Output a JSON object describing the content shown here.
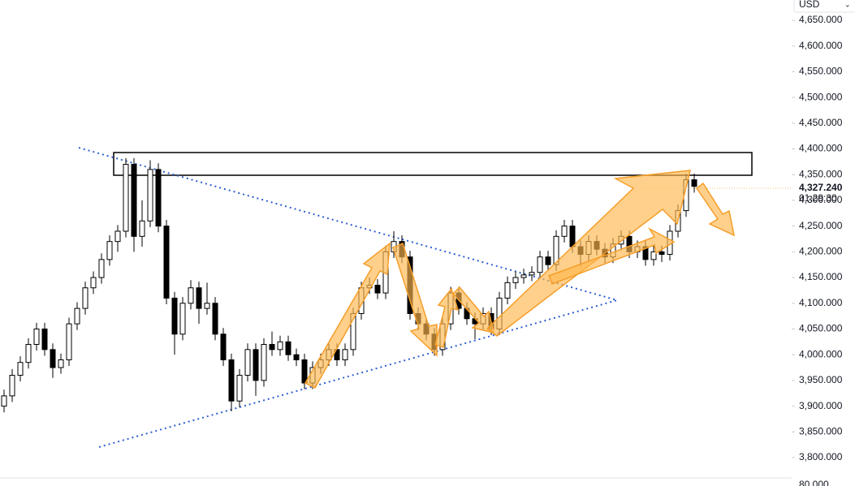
{
  "chart_data": {
    "type": "candlestick",
    "currency": "USD",
    "last_price_label": "4,327.240",
    "countdown": "01:29:30",
    "volume_label": "80,000",
    "up_color": "#ffffff",
    "down_color": "#000000",
    "wick_color": "#000000",
    "ylim": [
      3759,
      4689.4
    ],
    "yticks": [
      {
        "value": 3800,
        "label": "3,800.000"
      },
      {
        "value": 3850,
        "label": "3,850.000"
      },
      {
        "value": 3900,
        "label": "3,900.000"
      },
      {
        "value": 3950,
        "label": "3,950.000"
      },
      {
        "value": 4000,
        "label": "4,000.000"
      },
      {
        "value": 4050,
        "label": "4,050.000"
      },
      {
        "value": 4100,
        "label": "4,100.000"
      },
      {
        "value": 4150,
        "label": "4,150.000"
      },
      {
        "value": 4200,
        "label": "4,200.000"
      },
      {
        "value": 4250,
        "label": "4,250.000"
      },
      {
        "value": 4300,
        "label": "4,300.000"
      },
      {
        "value": 4350,
        "label": "4,350.000"
      },
      {
        "value": 4400,
        "label": "4,400.000"
      },
      {
        "value": 4450,
        "label": "4,450.000"
      },
      {
        "value": 4500,
        "label": "4,500.000"
      },
      {
        "value": 4550,
        "label": "4,550.000"
      },
      {
        "value": 4600,
        "label": "4,600.000"
      },
      {
        "value": 4650,
        "label": "4,650.000"
      }
    ],
    "grid": false,
    "open": [
      3900,
      3920,
      3960,
      3985,
      4020,
      4050,
      4010,
      3975,
      3990,
      4060,
      4090,
      4130,
      4150,
      4185,
      4220,
      4240,
      4370,
      4230,
      4260,
      4360,
      4250,
      4110,
      4040,
      4100,
      4130,
      4090,
      4100,
      4040,
      3990,
      3910,
      3960,
      4010,
      3950,
      4020,
      4010,
      4025,
      4000,
      3990,
      3945,
      3975,
      3990,
      4010,
      3990,
      4010,
      4080,
      4130,
      4135,
      4120,
      4200,
      4220,
      4190,
      4080,
      4060,
      4040,
      4010,
      4060,
      4120,
      4090,
      4070,
      4060,
      4080,
      4050,
      4110,
      4140,
      4150,
      4155,
      4160,
      4190,
      4175,
      4230,
      4250,
      4210,
      4195,
      4220,
      4205,
      4190,
      4215,
      4230,
      4200,
      4210,
      4185,
      4200,
      4195,
      4240,
      4280,
      4340
    ],
    "high": [
      3932,
      3972,
      3997,
      4032,
      4062,
      4062,
      4022,
      4002,
      4072,
      4102,
      4142,
      4162,
      4197,
      4232,
      4252,
      4382,
      4382,
      4300,
      4378,
      4372,
      4262,
      4122,
      4112,
      4145,
      4142,
      4140,
      4112,
      4052,
      4002,
      3972,
      4022,
      4022,
      4032,
      4045,
      4037,
      4037,
      4012,
      4002,
      3987,
      4002,
      4022,
      4022,
      4022,
      4092,
      4142,
      4150,
      4147,
      4212,
      4240,
      4232,
      4202,
      4092,
      4072,
      4052,
      4072,
      4132,
      4132,
      4102,
      4082,
      4092,
      4092,
      4122,
      4152,
      4162,
      4167,
      4172,
      4202,
      4202,
      4242,
      4262,
      4262,
      4222,
      4232,
      4232,
      4217,
      4227,
      4242,
      4242,
      4222,
      4222,
      4212,
      4212,
      4252,
      4292,
      4352,
      4352
    ],
    "low": [
      3888,
      3908,
      3948,
      3973,
      4008,
      3998,
      3955,
      3963,
      3978,
      4048,
      4078,
      4118,
      4138,
      4173,
      4200,
      4228,
      4200,
      4210,
      4248,
      4238,
      4098,
      4000,
      4028,
      4088,
      4060,
      4078,
      4028,
      3978,
      3890,
      3898,
      3948,
      3920,
      3938,
      3998,
      3998,
      3988,
      3978,
      3933,
      3933,
      3963,
      3978,
      3978,
      3978,
      3998,
      4068,
      4118,
      4108,
      4108,
      4188,
      4178,
      4068,
      4048,
      4028,
      3998,
      3998,
      4048,
      4078,
      4058,
      4030,
      4048,
      4038,
      4038,
      4098,
      4128,
      4138,
      4143,
      4148,
      4163,
      4163,
      4218,
      4198,
      4170,
      4183,
      4193,
      4178,
      4178,
      4203,
      4188,
      4188,
      4173,
      4173,
      4180,
      4183,
      4228,
      4268,
      4315
    ],
    "close": [
      3920,
      3960,
      3985,
      4020,
      4050,
      4010,
      3975,
      3990,
      4060,
      4090,
      4130,
      4150,
      4185,
      4220,
      4240,
      4370,
      4230,
      4260,
      4360,
      4250,
      4110,
      4040,
      4100,
      4130,
      4090,
      4100,
      4040,
      3990,
      3910,
      3960,
      4010,
      3950,
      4020,
      4010,
      4025,
      4000,
      3990,
      3945,
      3975,
      3990,
      4010,
      3990,
      4010,
      4080,
      4130,
      4135,
      4120,
      4200,
      4220,
      4190,
      4080,
      4060,
      4040,
      4010,
      4060,
      4120,
      4090,
      4070,
      4060,
      4080,
      4050,
      4110,
      4140,
      4150,
      4155,
      4160,
      4190,
      4175,
      4230,
      4250,
      4210,
      4195,
      4220,
      4205,
      4190,
      4215,
      4230,
      4200,
      4210,
      4185,
      4200,
      4195,
      4240,
      4280,
      4340,
      4327.24
    ]
  }
}
